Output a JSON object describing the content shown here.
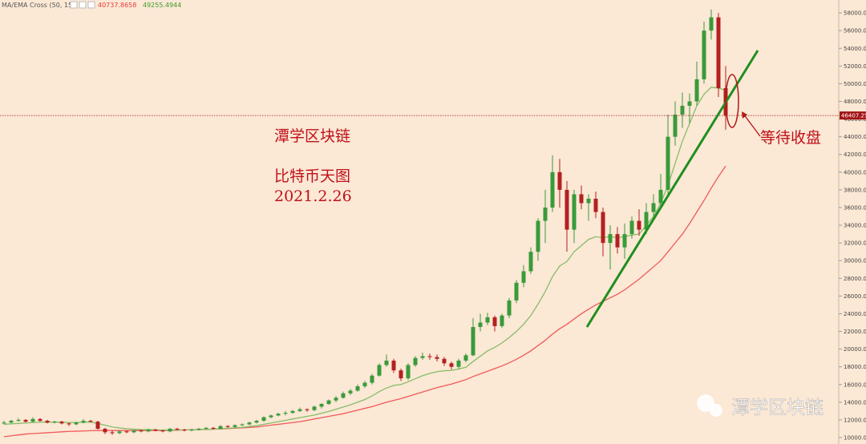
{
  "chart_data": {
    "type": "candlestick",
    "indicator": "MA/EMA Cross (50, 15)",
    "indicator_values": [
      {
        "value": 40737.8658,
        "color": "#e83c3c"
      },
      {
        "value": 49255.4944,
        "color": "#3f9a2f"
      }
    ],
    "annotations": [
      "潭学区块链",
      "比特币天图",
      "2021.2.26",
      "等待收盘"
    ],
    "watermark": "潭学区块链",
    "up_color": "#3a9a3a",
    "down_color": "#b42020",
    "background": "#fbe8d5",
    "ylim": [
      9275,
      59460
    ],
    "yticks": [
      {
        "value": 10000,
        "label": "10000.00"
      },
      {
        "value": 12000,
        "label": "12000.00"
      },
      {
        "value": 14000,
        "label": "14000.00"
      },
      {
        "value": 16000,
        "label": "16000.00"
      },
      {
        "value": 18000,
        "label": "18000.00"
      },
      {
        "value": 20000,
        "label": "20000.00"
      },
      {
        "value": 22000,
        "label": "22000.00"
      },
      {
        "value": 24000,
        "label": "24000.00"
      },
      {
        "value": 26000,
        "label": "26000.00"
      },
      {
        "value": 28000,
        "label": "28000.00"
      },
      {
        "value": 30000,
        "label": "30000.00"
      },
      {
        "value": 32000,
        "label": "32000.00"
      },
      {
        "value": 34000,
        "label": "34000.00"
      },
      {
        "value": 36000,
        "label": "36000.00"
      },
      {
        "value": 38000,
        "label": "38000.00"
      },
      {
        "value": 40000,
        "label": "40000.00"
      },
      {
        "value": 42000,
        "label": "42000.00"
      },
      {
        "value": 44000,
        "label": "44000.00"
      },
      {
        "value": 46000,
        "label": "46000.00"
      },
      {
        "value": 48000,
        "label": "48000.00"
      },
      {
        "value": 50000,
        "label": "50000.00"
      },
      {
        "value": 52000,
        "label": "52000.00"
      },
      {
        "value": 54000,
        "label": "54000.00"
      },
      {
        "value": 56000,
        "label": "56000.00"
      },
      {
        "value": 58000,
        "label": "58000.00"
      }
    ],
    "last_price": 46407.25,
    "last_price_color": "#a31515",
    "candles": [
      [
        11600,
        11900,
        11500,
        11700
      ],
      [
        11700,
        12000,
        11600,
        11900
      ],
      [
        11900,
        12200,
        11800,
        12000
      ],
      [
        12000,
        12100,
        11700,
        11800
      ],
      [
        11800,
        12300,
        11700,
        12100
      ],
      [
        12100,
        12200,
        11800,
        11900
      ],
      [
        11900,
        12000,
        11600,
        11700
      ],
      [
        11700,
        11900,
        11600,
        11800
      ],
      [
        11800,
        11900,
        11500,
        11600
      ],
      [
        11600,
        11700,
        11300,
        11500
      ],
      [
        11500,
        11800,
        11400,
        11700
      ],
      [
        11700,
        12100,
        11600,
        11900
      ],
      [
        11900,
        12000,
        11700,
        11800
      ],
      [
        11800,
        11900,
        10900,
        11000
      ],
      [
        11000,
        11100,
        10400,
        10600
      ],
      [
        10600,
        10800,
        10300,
        10500
      ],
      [
        10500,
        10800,
        10400,
        10700
      ],
      [
        10700,
        10800,
        10500,
        10600
      ],
      [
        10600,
        10900,
        10500,
        10800
      ],
      [
        10800,
        10900,
        10600,
        10700
      ],
      [
        10700,
        11000,
        10600,
        10900
      ],
      [
        10900,
        11000,
        10700,
        10800
      ],
      [
        10800,
        10900,
        10600,
        10700
      ],
      [
        10700,
        11100,
        10600,
        11000
      ],
      [
        11000,
        11100,
        10800,
        10900
      ],
      [
        10900,
        11000,
        10700,
        10800
      ],
      [
        10800,
        11000,
        10700,
        10900
      ],
      [
        10900,
        11100,
        10800,
        11000
      ],
      [
        11000,
        11200,
        10900,
        11100
      ],
      [
        11100,
        11200,
        10900,
        11000
      ],
      [
        11000,
        11400,
        10900,
        11300
      ],
      [
        11300,
        11400,
        11100,
        11200
      ],
      [
        11200,
        11500,
        11100,
        11400
      ],
      [
        11400,
        11600,
        11300,
        11500
      ],
      [
        11500,
        11800,
        11400,
        11700
      ],
      [
        11700,
        12000,
        11600,
        11900
      ],
      [
        11900,
        12400,
        11800,
        12300
      ],
      [
        12300,
        12600,
        12200,
        12500
      ],
      [
        12500,
        12800,
        12400,
        12700
      ],
      [
        12700,
        13000,
        12500,
        12800
      ],
      [
        12800,
        13100,
        12700,
        13000
      ],
      [
        13000,
        13400,
        12900,
        13200
      ],
      [
        13200,
        13300,
        12900,
        13100
      ],
      [
        13100,
        13600,
        13000,
        13500
      ],
      [
        13500,
        13900,
        13300,
        13800
      ],
      [
        13800,
        14300,
        13700,
        14200
      ],
      [
        14200,
        14700,
        14000,
        14500
      ],
      [
        14500,
        15200,
        14400,
        15000
      ],
      [
        15000,
        15500,
        14800,
        15300
      ],
      [
        15300,
        16000,
        15200,
        15800
      ],
      [
        15800,
        16400,
        15600,
        16200
      ],
      [
        16200,
        17200,
        16000,
        17000
      ],
      [
        17000,
        18400,
        16900,
        18200
      ],
      [
        18200,
        19400,
        18000,
        18700
      ],
      [
        18700,
        18900,
        17300,
        17600
      ],
      [
        17600,
        17800,
        16400,
        16700
      ],
      [
        16700,
        18400,
        16500,
        18200
      ],
      [
        18200,
        19200,
        18000,
        19000
      ],
      [
        19000,
        19600,
        18800,
        19200
      ],
      [
        19200,
        19500,
        18800,
        19100
      ],
      [
        19100,
        19400,
        18600,
        18900
      ],
      [
        18900,
        19100,
        18100,
        18400
      ],
      [
        18400,
        18600,
        17700,
        18000
      ],
      [
        18000,
        18900,
        17800,
        18700
      ],
      [
        18700,
        19500,
        18500,
        19300
      ],
      [
        19300,
        23500,
        19200,
        22500
      ],
      [
        22500,
        24000,
        22000,
        23000
      ],
      [
        23000,
        24100,
        22700,
        23600
      ],
      [
        23600,
        23800,
        22000,
        22600
      ],
      [
        22600,
        24000,
        22400,
        23800
      ],
      [
        23800,
        25800,
        23500,
        25500
      ],
      [
        25500,
        27800,
        25200,
        27500
      ],
      [
        27500,
        29500,
        27000,
        28800
      ],
      [
        28800,
        31500,
        28500,
        31000
      ],
      [
        31000,
        34800,
        30000,
        34500
      ],
      [
        34500,
        38000,
        32000,
        36000
      ],
      [
        36000,
        41900,
        35500,
        40000
      ],
      [
        40000,
        41500,
        36000,
        38000
      ],
      [
        38000,
        39000,
        31000,
        33500
      ],
      [
        33500,
        38000,
        32000,
        37500
      ],
      [
        37500,
        38500,
        35800,
        36500
      ],
      [
        36500,
        37500,
        34500,
        37000
      ],
      [
        37000,
        37800,
        34800,
        35500
      ],
      [
        35500,
        36000,
        30500,
        32000
      ],
      [
        32000,
        34000,
        29000,
        33000
      ],
      [
        33000,
        33800,
        30800,
        31500
      ],
      [
        31500,
        34200,
        30200,
        33000
      ],
      [
        33000,
        35000,
        32500,
        34500
      ],
      [
        34500,
        35800,
        32800,
        33500
      ],
      [
        33500,
        36500,
        33000,
        35500
      ],
      [
        35500,
        37500,
        35000,
        36500
      ],
      [
        36500,
        39800,
        36000,
        38000
      ],
      [
        38000,
        46500,
        37500,
        44000
      ],
      [
        44000,
        48000,
        43000,
        46500
      ],
      [
        46500,
        49000,
        45000,
        47500
      ],
      [
        47500,
        48900,
        45500,
        48000
      ],
      [
        48000,
        52500,
        47500,
        50500
      ],
      [
        50500,
        57000,
        50000,
        56000
      ],
      [
        56000,
        58400,
        55000,
        57500
      ],
      [
        57500,
        58000,
        48500,
        49500
      ],
      [
        49500,
        52000,
        44800,
        46400
      ]
    ],
    "ma_fast": {
      "color": "#86bd68",
      "values": [
        11500,
        11550,
        11600,
        11650,
        11700,
        11750,
        11750,
        11750,
        11750,
        11700,
        11700,
        11750,
        11750,
        11600,
        11400,
        11200,
        11100,
        11000,
        10950,
        10900,
        10900,
        10880,
        10850,
        10870,
        10870,
        10860,
        10870,
        10900,
        10930,
        10950,
        11000,
        11050,
        11100,
        11150,
        11250,
        11350,
        11500,
        11650,
        11800,
        11950,
        12100,
        12250,
        12400,
        12550,
        12750,
        12950,
        13200,
        13450,
        13700,
        14000,
        14300,
        14700,
        15200,
        15600,
        15900,
        16000,
        16300,
        16650,
        17000,
        17250,
        17450,
        17550,
        17600,
        17750,
        17950,
        18600,
        19200,
        19800,
        20200,
        20700,
        21300,
        22000,
        22800,
        23800,
        25100,
        26500,
        28200,
        29400,
        29900,
        31000,
        31700,
        32400,
        32700,
        32600,
        32700,
        32600,
        32700,
        32900,
        33000,
        34000,
        35000,
        36500,
        38500,
        41000,
        43500,
        45500,
        47500,
        48800,
        49600,
        49500,
        49255
      ]
    },
    "ma_slow": {
      "color": "#f05a5a",
      "values": [
        10100,
        10200,
        10300,
        10400,
        10450,
        10500,
        10550,
        10600,
        10650,
        10700,
        10720,
        10750,
        10780,
        10800,
        10800,
        10800,
        10800,
        10800,
        10800,
        10800,
        10800,
        10800,
        10800,
        10820,
        10840,
        10860,
        10880,
        10900,
        10920,
        10950,
        10980,
        11020,
        11060,
        11100,
        11150,
        11200,
        11300,
        11400,
        11500,
        11600,
        11700,
        11800,
        11950,
        12100,
        12250,
        12400,
        12550,
        12700,
        12900,
        13100,
        13300,
        13500,
        13750,
        14000,
        14200,
        14400,
        14650,
        14900,
        15150,
        15400,
        15650,
        15850,
        16050,
        16300,
        16550,
        16900,
        17200,
        17500,
        17800,
        18100,
        18450,
        18850,
        19300,
        19800,
        20400,
        21000,
        21700,
        22300,
        22800,
        23400,
        24000,
        24500,
        25000,
        25400,
        25800,
        26200,
        26700,
        27300,
        27900,
        28600,
        29300,
        30000,
        31000,
        32000,
        33000,
        34200,
        35500,
        36800,
        38200,
        39500,
        40700
      ]
    }
  }
}
